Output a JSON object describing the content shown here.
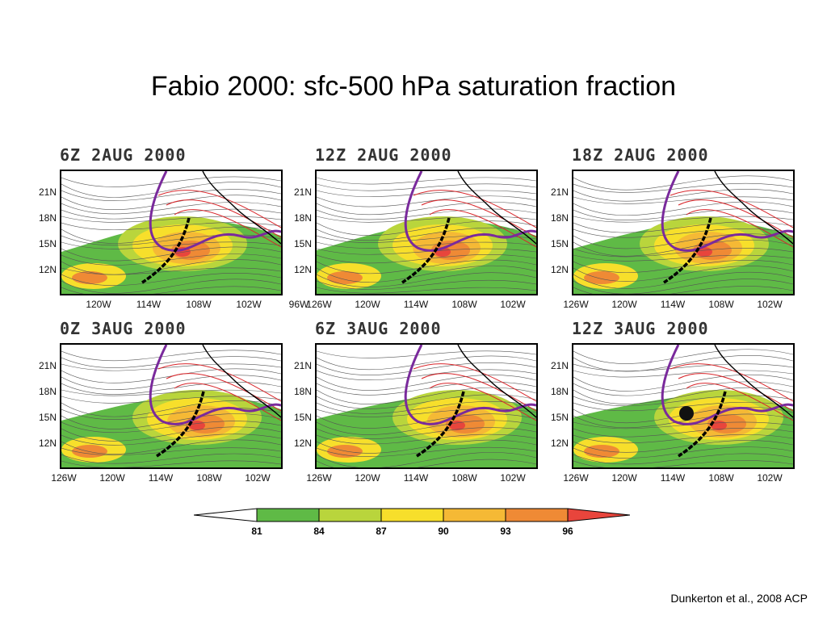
{
  "title": "Fabio 2000: sfc-500 hPa saturation fraction",
  "citation": "Dunkerton et al., 2008 ACP",
  "lat_labels": [
    "21N",
    "18N",
    "15N",
    "12N"
  ],
  "panels": [
    {
      "title": "6Z 2AUG 2000",
      "lon_labels": [
        "120W",
        "114W",
        "108W",
        "102W",
        "96W"
      ]
    },
    {
      "title": "12Z 2AUG 2000",
      "lon_labels": [
        "126W",
        "120W",
        "114W",
        "108W",
        "102W"
      ]
    },
    {
      "title": "18Z 2AUG 2000",
      "lon_labels": [
        "126W",
        "120W",
        "114W",
        "108W",
        "102W"
      ]
    },
    {
      "title": "0Z 3AUG 2000",
      "lon_labels": [
        "126W",
        "120W",
        "114W",
        "108W",
        "102W"
      ]
    },
    {
      "title": "6Z 3AUG 2000",
      "lon_labels": [
        "126W",
        "120W",
        "114W",
        "108W",
        "102W"
      ]
    },
    {
      "title": "12Z 3AUG 2000",
      "lon_labels": [
        "126W",
        "120W",
        "114W",
        "108W",
        "102W"
      ]
    }
  ],
  "colorbar": {
    "labels": [
      "81",
      "84",
      "87",
      "90",
      "93",
      "96"
    ],
    "colors": [
      "#ffffff",
      "#5fba46",
      "#b9d53c",
      "#f7df2b",
      "#f5b935",
      "#ef8a35",
      "#e8453c"
    ]
  }
}
